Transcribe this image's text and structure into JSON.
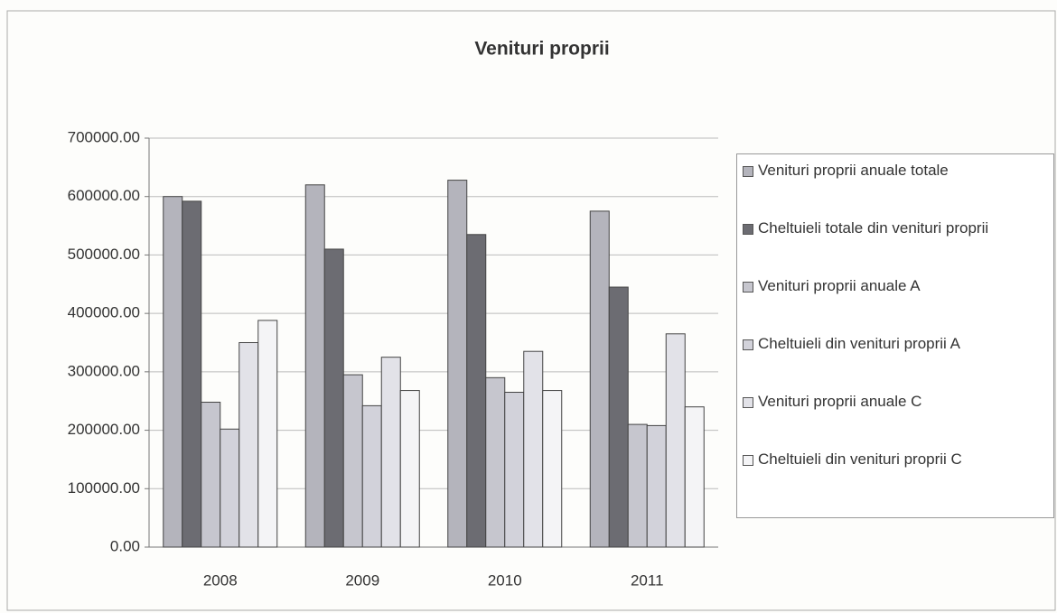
{
  "chart_data": {
    "type": "bar",
    "title": "Venituri proprii",
    "categories": [
      "2008",
      "2009",
      "2010",
      "2011"
    ],
    "series": [
      {
        "name": "Venituri proprii anuale totale",
        "color": "#b4b4bc",
        "values": [
          600000,
          620000,
          628000,
          575000
        ]
      },
      {
        "name": "Cheltuieli totale din venituri proprii",
        "color": "#6c6c72",
        "values": [
          592000,
          510000,
          535000,
          445000
        ]
      },
      {
        "name": "Venituri proprii anuale A",
        "color": "#c6c6ce",
        "values": [
          248000,
          295000,
          290000,
          210000
        ]
      },
      {
        "name": "Cheltuieli din venituri proprii A",
        "color": "#d2d2da",
        "values": [
          202000,
          242000,
          265000,
          208000
        ]
      },
      {
        "name": "Venituri proprii anuale C",
        "color": "#e2e2e8",
        "values": [
          350000,
          325000,
          335000,
          365000
        ]
      },
      {
        "name": "Cheltuieli din venituri proprii C",
        "color": "#f4f4f6",
        "values": [
          388000,
          268000,
          268000,
          240000
        ]
      }
    ],
    "ylim": [
      0,
      700000
    ],
    "yticks": [
      {
        "value": 0,
        "label": "0.00"
      },
      {
        "value": 100000,
        "label": "100000.00"
      },
      {
        "value": 200000,
        "label": "200000.00"
      },
      {
        "value": 300000,
        "label": "300000.00"
      },
      {
        "value": 400000,
        "label": "400000.00"
      },
      {
        "value": 500000,
        "label": "500000.00"
      },
      {
        "value": 600000,
        "label": "600000.00"
      },
      {
        "value": 700000,
        "label": "700000.00"
      }
    ],
    "grid": true,
    "legend": "right"
  }
}
